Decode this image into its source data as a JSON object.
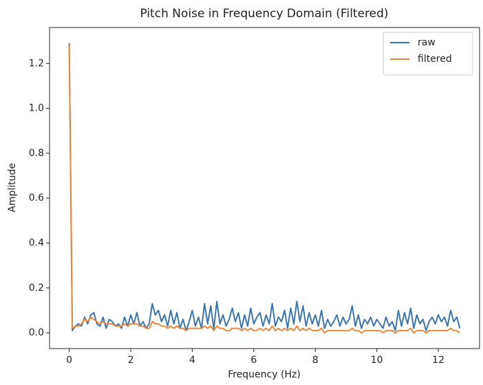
{
  "chart_data": {
    "type": "line",
    "title": "Pitch Noise in Frequency Domain (Filtered)",
    "x_label": "Frequency (Hz)",
    "y_label": "Amplitude",
    "x": [
      0,
      0.1,
      0.2,
      0.3,
      0.4,
      0.5,
      0.6,
      0.7,
      0.8,
      0.9,
      1.0,
      1.1,
      1.2,
      1.3,
      1.4,
      1.5,
      1.6,
      1.7,
      1.8,
      1.9,
      2.0,
      2.1,
      2.2,
      2.3,
      2.4,
      2.5,
      2.6,
      2.7,
      2.8,
      2.9,
      3.0,
      3.1,
      3.2,
      3.3,
      3.4,
      3.5,
      3.6,
      3.7,
      3.8,
      3.9,
      4.0,
      4.1,
      4.2,
      4.3,
      4.4,
      4.5,
      4.6,
      4.7,
      4.8,
      4.9,
      5.0,
      5.1,
      5.2,
      5.3,
      5.4,
      5.5,
      5.6,
      5.7,
      5.8,
      5.9,
      6.0,
      6.1,
      6.2,
      6.3,
      6.4,
      6.5,
      6.6,
      6.7,
      6.8,
      6.9,
      7.0,
      7.1,
      7.2,
      7.3,
      7.4,
      7.5,
      7.6,
      7.7,
      7.8,
      7.9,
      8.0,
      8.1,
      8.2,
      8.3,
      8.4,
      8.5,
      8.6,
      8.7,
      8.8,
      8.9,
      9.0,
      9.1,
      9.2,
      9.3,
      9.4,
      9.5,
      9.6,
      9.7,
      9.8,
      9.9,
      10.0,
      10.1,
      10.2,
      10.3,
      10.4,
      10.5,
      10.6,
      10.7,
      10.8,
      10.9,
      11.0,
      11.1,
      11.2,
      11.3,
      11.4,
      11.5,
      11.6,
      11.7,
      11.8,
      11.9,
      12.0,
      12.1,
      12.2,
      12.3,
      12.4,
      12.5,
      12.6,
      12.7
    ],
    "series": [
      {
        "name": "raw",
        "color": "#3b75af",
        "values": [
          1.29,
          0.01,
          0.03,
          0.04,
          0.03,
          0.07,
          0.04,
          0.08,
          0.09,
          0.04,
          0.03,
          0.07,
          0.02,
          0.06,
          0.05,
          0.03,
          0.04,
          0.02,
          0.07,
          0.03,
          0.08,
          0.04,
          0.09,
          0.03,
          0.05,
          0.02,
          0.04,
          0.13,
          0.08,
          0.1,
          0.05,
          0.08,
          0.03,
          0.1,
          0.04,
          0.09,
          0.02,
          0.06,
          0.01,
          0.05,
          0.1,
          0.03,
          0.07,
          0.02,
          0.13,
          0.04,
          0.12,
          0.02,
          0.14,
          0.04,
          0.08,
          0.03,
          0.06,
          0.11,
          0.05,
          0.09,
          0.02,
          0.08,
          0.03,
          0.11,
          0.04,
          0.07,
          0.09,
          0.03,
          0.08,
          0.04,
          0.13,
          0.03,
          0.07,
          0.05,
          0.1,
          0.02,
          0.11,
          0.04,
          0.14,
          0.05,
          0.12,
          0.03,
          0.09,
          0.04,
          0.08,
          0.03,
          0.1,
          0.02,
          0.06,
          0.03,
          0.05,
          0.08,
          0.03,
          0.07,
          0.04,
          0.06,
          0.12,
          0.03,
          0.08,
          0.02,
          0.06,
          0.04,
          0.07,
          0.03,
          0.06,
          0.04,
          0.02,
          0.07,
          0.03,
          0.05,
          0.01,
          0.1,
          0.03,
          0.09,
          0.04,
          0.11,
          0.02,
          0.08,
          0.04,
          0.06,
          0.01,
          0.05,
          0.07,
          0.04,
          0.08,
          0.05,
          0.07,
          0.03,
          0.1,
          0.05,
          0.07,
          0.02
        ]
      },
      {
        "name": "filtered",
        "color": "#ef8636",
        "values": [
          1.28,
          0.02,
          0.03,
          0.03,
          0.04,
          0.06,
          0.05,
          0.07,
          0.06,
          0.05,
          0.04,
          0.05,
          0.04,
          0.04,
          0.04,
          0.03,
          0.03,
          0.03,
          0.04,
          0.03,
          0.04,
          0.04,
          0.04,
          0.03,
          0.03,
          0.02,
          0.02,
          0.05,
          0.04,
          0.04,
          0.03,
          0.03,
          0.02,
          0.03,
          0.02,
          0.03,
          0.02,
          0.02,
          0.01,
          0.02,
          0.02,
          0.02,
          0.02,
          0.02,
          0.03,
          0.02,
          0.03,
          0.01,
          0.03,
          0.02,
          0.02,
          0.01,
          0.01,
          0.02,
          0.02,
          0.02,
          0.01,
          0.02,
          0.01,
          0.02,
          0.01,
          0.01,
          0.02,
          0.01,
          0.02,
          0.01,
          0.03,
          0.01,
          0.02,
          0.01,
          0.02,
          0.01,
          0.02,
          0.01,
          0.03,
          0.01,
          0.02,
          0.01,
          0.02,
          0.01,
          0.01,
          0.01,
          0.02,
          0,
          0.01,
          0.01,
          0.01,
          0.01,
          0.01,
          0.01,
          0.01,
          0.01,
          0.02,
          0.01,
          0.01,
          0,
          0.01,
          0.01,
          0.01,
          0.01,
          0.01,
          0.01,
          0,
          0.01,
          0.01,
          0.01,
          0,
          0.01,
          0.01,
          0.01,
          0.01,
          0.02,
          0,
          0.01,
          0.01,
          0.01,
          0,
          0.01,
          0.01,
          0.01,
          0.01,
          0.01,
          0.01,
          0.01,
          0.02,
          0.01,
          0.01,
          0
        ]
      }
    ],
    "xlim": [
      -0.64,
      13.34
    ],
    "ylim": [
      -0.07,
      1.36
    ],
    "xticks": [
      0,
      2,
      4,
      6,
      8,
      10,
      12
    ],
    "yticks": [
      {
        "value": 0,
        "label": "0.0"
      },
      0.2,
      0.4,
      0.6,
      0.8,
      {
        "value": 1,
        "label": "1.0"
      },
      1.2
    ],
    "grid": false,
    "legend": "upper right"
  }
}
